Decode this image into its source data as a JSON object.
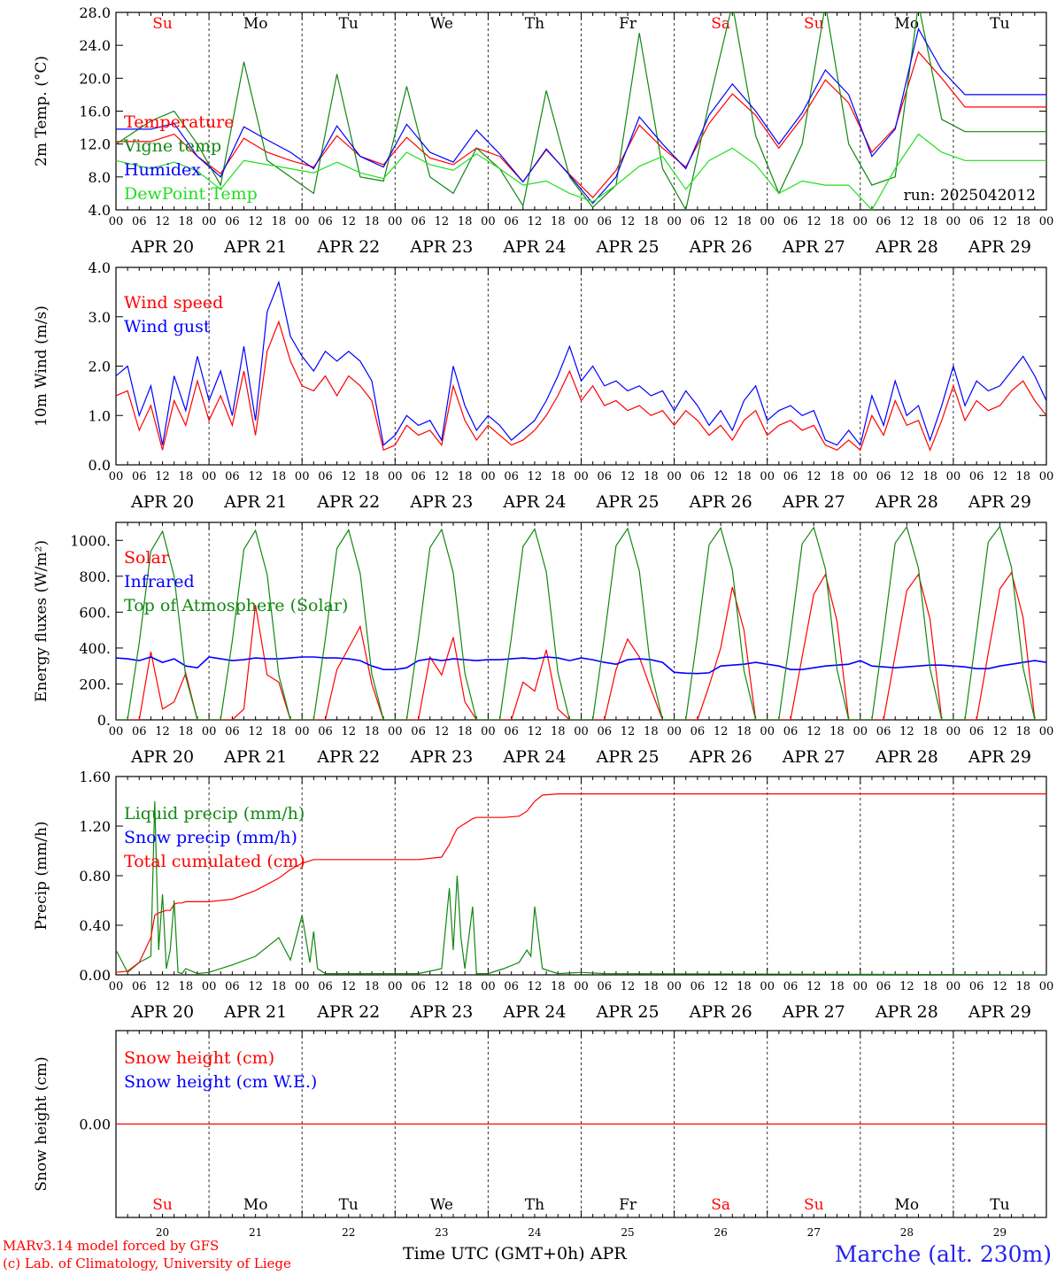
{
  "footer": {
    "credit_line1": "MARv3.14 model forced by GFS",
    "credit_line2": "(c) Lab. of Climatology, University of Liege",
    "time_axis_title": "Time UTC (GMT+0h) APR",
    "station": "Marche (alt. 230m)"
  },
  "colors": {
    "red": "#ff0000",
    "green": "#118811",
    "blue": "#0000ff",
    "lightgreen": "#22dd22",
    "weekend": "#ff0000",
    "weekday": "#000000"
  },
  "chart_data": [
    {
      "type": "line",
      "ylabel": "2m Temp. (°C)",
      "ylim": [
        4,
        28
      ],
      "yticks": [
        "4.0",
        "8.0",
        "12.0",
        "16.0",
        "20.0",
        "24.0",
        "28.0"
      ],
      "annotation": "run: 2025042012",
      "day_labels": [
        "Su",
        "Mo",
        "Tu",
        "We",
        "Th",
        "Fr",
        "Sa",
        "Su",
        "Mo",
        "Tu"
      ],
      "hour_ticks": [
        "00",
        "06",
        "12",
        "18"
      ],
      "date_labels": [
        "APR 20",
        "APR 21",
        "APR 22",
        "APR 23",
        "APR 24",
        "APR 25",
        "APR 26",
        "APR 27",
        "APR 28",
        "APR 29"
      ],
      "x_hours": [
        0,
        9,
        15,
        21,
        27,
        33,
        39,
        45,
        51,
        57,
        63,
        69,
        75,
        81,
        87,
        93,
        99,
        105,
        111,
        117,
        123,
        129,
        135,
        141,
        147,
        153,
        159,
        165,
        171,
        177,
        183,
        189,
        195,
        201,
        207,
        213,
        219,
        225,
        231,
        237,
        240
      ],
      "series": [
        {
          "name": "Temperature",
          "color": "red",
          "values": [
            12.3,
            12.3,
            13.2,
            10.5,
            8.4,
            12.7,
            11.0,
            10.0,
            9.2,
            13.0,
            10.5,
            9.5,
            12.8,
            10.3,
            9.5,
            11.5,
            10.5,
            7.4,
            11.3,
            8.3,
            5.5,
            8.8,
            14.3,
            11.5,
            9.2,
            14.5,
            18.1,
            15.5,
            11.5,
            15.2,
            19.8,
            17.0,
            11.0,
            14.0,
            23.2,
            20.0,
            16.5,
            16.5,
            16.5,
            16.5,
            16.5
          ]
        },
        {
          "name": "Vigne temp",
          "color": "green",
          "values": [
            12.0,
            14.8,
            16.0,
            12.0,
            7.0,
            22.0,
            10.0,
            8.0,
            6.0,
            20.5,
            8.0,
            7.5,
            19.0,
            8.0,
            6.0,
            11.5,
            9.0,
            4.5,
            18.5,
            8.0,
            4.3,
            7.0,
            25.5,
            9.0,
            4.0,
            17.0,
            29.0,
            13.0,
            6.0,
            12.0,
            29.0,
            12.0,
            7.0,
            8.0,
            29.0,
            15.0,
            13.5,
            13.5,
            13.5,
            13.5,
            13.5
          ]
        },
        {
          "name": "Humidex",
          "color": "blue",
          "values": [
            13.8,
            13.8,
            14.5,
            10.5,
            8.0,
            14.1,
            12.5,
            11.0,
            9.0,
            14.2,
            10.5,
            9.2,
            14.4,
            11.0,
            9.8,
            13.7,
            10.8,
            7.4,
            11.4,
            8.2,
            4.8,
            8.0,
            15.3,
            12.0,
            9.0,
            15.5,
            19.3,
            16.0,
            12.0,
            15.8,
            21.0,
            18.0,
            10.5,
            13.8,
            26.0,
            21.0,
            18.0,
            18.0,
            18.0,
            18.0,
            18.0
          ]
        },
        {
          "name": "DewPoint Temp",
          "color": "lightgreen",
          "values": [
            10.0,
            9.0,
            9.8,
            8.7,
            6.5,
            10.0,
            9.5,
            9.0,
            8.5,
            9.8,
            8.5,
            7.8,
            11.0,
            9.5,
            8.8,
            10.8,
            9.0,
            7.0,
            7.5,
            6.0,
            5.0,
            7.0,
            9.3,
            10.5,
            6.5,
            10.0,
            11.5,
            9.5,
            6.0,
            7.5,
            7.0,
            7.0,
            4.0,
            9.0,
            13.2,
            11.0,
            10.0,
            10.0,
            10.0,
            10.0,
            10.0
          ]
        }
      ]
    },
    {
      "type": "line",
      "ylabel": "10m Wind (m/s)",
      "ylim": [
        0,
        4
      ],
      "yticks": [
        "0.0",
        "1.0",
        "2.0",
        "3.0",
        "4.0"
      ],
      "x_hours": [
        0,
        3,
        6,
        9,
        12,
        15,
        18,
        21,
        24,
        27,
        30,
        33,
        36,
        39,
        42,
        45,
        48,
        51,
        54,
        57,
        60,
        63,
        66,
        69,
        72,
        75,
        78,
        81,
        84,
        87,
        90,
        93,
        96,
        99,
        102,
        105,
        108,
        111,
        114,
        117,
        120,
        123,
        126,
        129,
        132,
        135,
        138,
        141,
        144,
        147,
        150,
        153,
        156,
        159,
        162,
        165,
        168,
        171,
        174,
        177,
        180,
        183,
        186,
        189,
        192,
        195,
        198,
        201,
        204,
        207,
        210,
        213,
        216,
        219,
        222,
        225,
        228,
        231,
        234,
        237,
        240
      ],
      "series": [
        {
          "name": "Wind speed",
          "color": "red",
          "values": [
            1.4,
            1.5,
            0.7,
            1.2,
            0.3,
            1.3,
            0.8,
            1.7,
            0.9,
            1.4,
            0.8,
            1.9,
            0.6,
            2.3,
            2.9,
            2.1,
            1.6,
            1.5,
            1.8,
            1.4,
            1.8,
            1.6,
            1.3,
            0.3,
            0.4,
            0.8,
            0.6,
            0.7,
            0.4,
            1.6,
            0.9,
            0.5,
            0.8,
            0.6,
            0.4,
            0.5,
            0.7,
            1.0,
            1.4,
            1.9,
            1.3,
            1.6,
            1.2,
            1.3,
            1.1,
            1.2,
            1.0,
            1.1,
            0.8,
            1.1,
            0.9,
            0.6,
            0.8,
            0.5,
            0.9,
            1.1,
            0.6,
            0.8,
            0.9,
            0.7,
            0.8,
            0.4,
            0.3,
            0.5,
            0.3,
            1.0,
            0.6,
            1.3,
            0.8,
            0.9,
            0.3,
            0.9,
            1.6,
            0.9,
            1.3,
            1.1,
            1.2,
            1.5,
            1.7,
            1.3,
            1.0
          ]
        },
        {
          "name": "Wind gust",
          "color": "blue",
          "values": [
            1.8,
            2.0,
            1.0,
            1.6,
            0.4,
            1.8,
            1.1,
            2.2,
            1.3,
            1.9,
            1.0,
            2.4,
            0.9,
            3.1,
            3.7,
            2.6,
            2.2,
            1.9,
            2.3,
            2.1,
            2.3,
            2.1,
            1.7,
            0.4,
            0.6,
            1.0,
            0.8,
            0.9,
            0.5,
            2.0,
            1.2,
            0.7,
            1.0,
            0.8,
            0.5,
            0.7,
            0.9,
            1.3,
            1.8,
            2.4,
            1.7,
            2.0,
            1.6,
            1.7,
            1.5,
            1.6,
            1.4,
            1.5,
            1.1,
            1.5,
            1.2,
            0.8,
            1.1,
            0.7,
            1.3,
            1.6,
            0.9,
            1.1,
            1.2,
            1.0,
            1.1,
            0.5,
            0.4,
            0.7,
            0.4,
            1.4,
            0.8,
            1.7,
            1.0,
            1.2,
            0.5,
            1.2,
            2.0,
            1.2,
            1.7,
            1.5,
            1.6,
            1.9,
            2.2,
            1.8,
            1.3
          ]
        }
      ]
    },
    {
      "type": "line",
      "ylabel": "Energy fluxes (W/m²)",
      "ylim": [
        0,
        1100
      ],
      "yticks": [
        "0.",
        "200.",
        "400.",
        "600.",
        "800.",
        "1000."
      ],
      "x_hours": [
        0,
        3,
        6,
        9,
        12,
        15,
        18,
        21,
        24,
        27,
        30,
        33,
        36,
        39,
        42,
        45,
        48,
        51,
        54,
        57,
        60,
        63,
        66,
        69,
        72,
        75,
        78,
        81,
        84,
        87,
        90,
        93,
        96,
        99,
        102,
        105,
        108,
        111,
        114,
        117,
        120,
        123,
        126,
        129,
        132,
        135,
        138,
        141,
        144,
        147,
        150,
        153,
        156,
        159,
        162,
        165,
        168,
        171,
        174,
        177,
        180,
        183,
        186,
        189,
        192,
        195,
        198,
        201,
        204,
        207,
        210,
        213,
        216,
        219,
        222,
        225,
        228,
        231,
        234,
        237,
        240
      ],
      "series": [
        {
          "name": "Solar",
          "color": "red",
          "values": [
            0,
            0,
            0,
            380,
            60,
            100,
            260,
            0,
            0,
            0,
            0,
            60,
            640,
            250,
            210,
            0,
            0,
            0,
            0,
            280,
            400,
            520,
            200,
            0,
            0,
            0,
            0,
            350,
            250,
            460,
            100,
            0,
            0,
            0,
            0,
            210,
            160,
            390,
            60,
            0,
            0,
            0,
            0,
            280,
            450,
            350,
            170,
            0,
            0,
            0,
            0,
            190,
            400,
            740,
            500,
            0,
            0,
            0,
            0,
            350,
            700,
            810,
            550,
            0,
            0,
            0,
            0,
            360,
            720,
            810,
            560,
            0,
            0,
            0,
            0,
            370,
            730,
            820,
            570,
            0,
            0
          ]
        },
        {
          "name": "Infrared",
          "color": "blue",
          "values": [
            345,
            340,
            330,
            350,
            320,
            340,
            300,
            290,
            350,
            340,
            330,
            335,
            345,
            340,
            340,
            345,
            350,
            350,
            345,
            345,
            340,
            330,
            300,
            280,
            280,
            290,
            330,
            340,
            330,
            340,
            335,
            330,
            335,
            335,
            340,
            345,
            340,
            350,
            345,
            330,
            345,
            335,
            320,
            310,
            335,
            340,
            335,
            320,
            265,
            260,
            258,
            262,
            300,
            305,
            310,
            320,
            310,
            300,
            280,
            280,
            290,
            300,
            305,
            310,
            330,
            300,
            295,
            290,
            295,
            300,
            305,
            305,
            300,
            295,
            285,
            285,
            300,
            310,
            320,
            330,
            320
          ]
        },
        {
          "name": "Top of Atmosphere (Solar)",
          "color": "green",
          "values": [
            0,
            0,
            430,
            940,
            1050,
            800,
            240,
            0,
            0,
            0,
            440,
            950,
            1055,
            810,
            250,
            0,
            0,
            0,
            450,
            955,
            1058,
            815,
            255,
            0,
            0,
            0,
            455,
            960,
            1060,
            820,
            260,
            0,
            0,
            0,
            460,
            965,
            1063,
            825,
            265,
            0,
            0,
            0,
            465,
            970,
            1066,
            830,
            270,
            0,
            0,
            0,
            470,
            975,
            1069,
            835,
            275,
            0,
            0,
            0,
            475,
            980,
            1072,
            840,
            280,
            0,
            0,
            0,
            480,
            985,
            1075,
            845,
            285,
            0,
            0,
            0,
            485,
            990,
            1078,
            850,
            290,
            0,
            0
          ]
        }
      ]
    },
    {
      "type": "line",
      "ylabel": "Precip (mm/h)",
      "ylim": [
        0,
        1.6
      ],
      "yticks": [
        "0.00",
        "0.40",
        "0.80",
        "1.20",
        "1.60"
      ],
      "x_hours": [
        0,
        3,
        6,
        9,
        10,
        11,
        12,
        13,
        14,
        15,
        16,
        17,
        18,
        21,
        24,
        30,
        36,
        42,
        45,
        48,
        50,
        51,
        52,
        54,
        57,
        60,
        66,
        72,
        78,
        84,
        86,
        87,
        88,
        89,
        90,
        92,
        93,
        96,
        100,
        104,
        106,
        107,
        108,
        110,
        114,
        120,
        126,
        240
      ],
      "series": [
        {
          "name": "Liquid precip (mm/h)",
          "color": "green",
          "values": [
            0.2,
            0.02,
            0.1,
            0.15,
            1.4,
            0.2,
            0.65,
            0.05,
            0.2,
            0.6,
            0.02,
            0.01,
            0.05,
            0.01,
            0.02,
            0.08,
            0.15,
            0.3,
            0.12,
            0.48,
            0.1,
            0.35,
            0.05,
            0.01,
            0.01,
            0.01,
            0.01,
            0.01,
            0.01,
            0.05,
            0.7,
            0.2,
            0.8,
            0.3,
            0.05,
            0.55,
            0.01,
            0.01,
            0.05,
            0.1,
            0.2,
            0.15,
            0.55,
            0.05,
            0.01,
            0.02,
            0.01,
            0.0
          ]
        },
        {
          "name": "Total cumulated (cm)",
          "color": "red",
          "values": [
            0.02,
            0.03,
            0.1,
            0.3,
            0.48,
            0.5,
            0.51,
            0.52,
            0.52,
            0.57,
            0.58,
            0.58,
            0.59,
            0.59,
            0.59,
            0.61,
            0.68,
            0.78,
            0.85,
            0.9,
            0.92,
            0.93,
            0.93,
            0.93,
            0.93,
            0.93,
            0.93,
            0.93,
            0.93,
            0.95,
            1.05,
            1.12,
            1.18,
            1.2,
            1.22,
            1.26,
            1.27,
            1.27,
            1.27,
            1.28,
            1.32,
            1.36,
            1.4,
            1.45,
            1.46,
            1.46,
            1.46,
            1.46
          ]
        }
      ],
      "legend": [
        {
          "name": "Liquid precip (mm/h)",
          "color": "green"
        },
        {
          "name": "Snow precip (mm/h)",
          "color": "blue"
        },
        {
          "name": "Total cumulated (cm)",
          "color": "red"
        }
      ]
    },
    {
      "type": "line",
      "ylabel": "Snow height (cm)",
      "ylim": [
        -1,
        1
      ],
      "yticks": [
        "0.00"
      ],
      "day_numbers": [
        "20",
        "21",
        "22",
        "23",
        "24",
        "25",
        "26",
        "27",
        "28",
        "29"
      ],
      "x_hours": [
        0,
        240
      ],
      "series": [
        {
          "name": "Snow height (cm)",
          "color": "red",
          "values": [
            0,
            0
          ]
        }
      ],
      "legend": [
        {
          "name": "Snow height (cm)",
          "color": "red"
        },
        {
          "name": "Snow height (cm W.E.)",
          "color": "blue"
        }
      ]
    }
  ]
}
